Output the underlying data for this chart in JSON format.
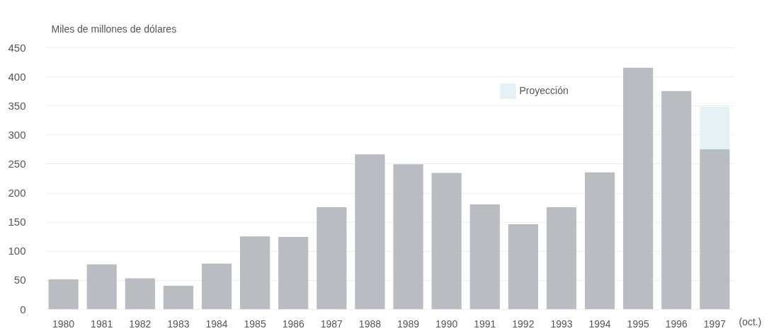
{
  "chart_data": {
    "type": "bar",
    "ylabel": "Miles de millones de dólares",
    "xlabel": "(oct.)",
    "categories": [
      "1980",
      "1981",
      "1982",
      "1983",
      "1984",
      "1985",
      "1986",
      "1987",
      "1988",
      "1989",
      "1990",
      "1991",
      "1992",
      "1993",
      "1994",
      "1995",
      "1996",
      "1997"
    ],
    "stacked": true,
    "series": [
      {
        "color": "#b9bcc1",
        "values": [
          51,
          77,
          53,
          40,
          78,
          125,
          124,
          175,
          266,
          249,
          234,
          180,
          146,
          175,
          235,
          415,
          375,
          275
        ]
      },
      {
        "name": "Proyección",
        "color": "#e6f1f5",
        "values": [
          null,
          null,
          null,
          null,
          null,
          null,
          null,
          null,
          null,
          null,
          null,
          null,
          null,
          null,
          null,
          null,
          null,
          73
        ]
      }
    ],
    "ylim": [
      0,
      450
    ],
    "yticks": [
      0,
      50,
      100,
      150,
      200,
      250,
      300,
      350,
      400,
      450
    ],
    "grid": "y",
    "legend": "top"
  }
}
